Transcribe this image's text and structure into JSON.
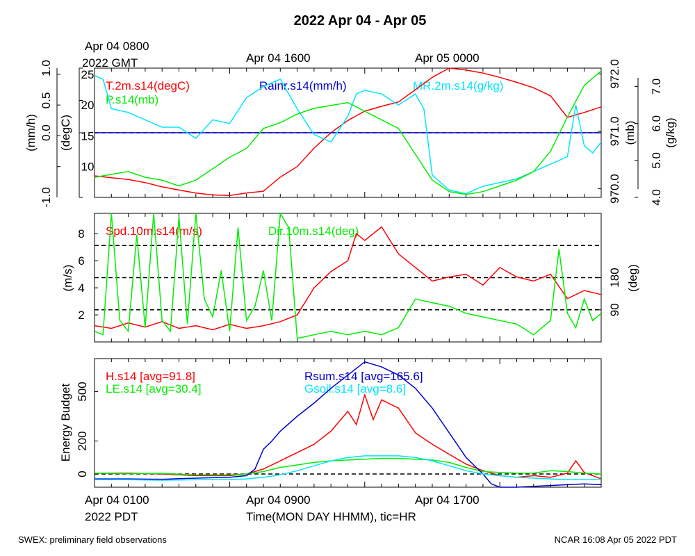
{
  "title": "2022 Apr 04 - Apr 05",
  "top_time_labels": [
    {
      "line1": "Apr 04 0800",
      "line2": "2022 GMT"
    },
    {
      "line1": "Apr 04 1600",
      "line2": ""
    },
    {
      "line1": "Apr 05 0000",
      "line2": ""
    }
  ],
  "bottom_time_labels": [
    {
      "line1": "Apr 04 0100",
      "line2": "2022 PDT"
    },
    {
      "line1": "Apr 04 0900",
      "line2": ""
    },
    {
      "line1": "Apr 04 1700",
      "line2": ""
    }
  ],
  "xlabel": "Time(MON DAY HHMM), tic=HR",
  "footer_left": "SWEX: preliminary field observations",
  "footer_right": "NCAR 16:08 Apr 05 2022 PDT",
  "colors": {
    "red": "#ff0000",
    "green": "#00ee00",
    "blue": "#0000cc",
    "cyan": "#00e5ff",
    "black": "#000000"
  },
  "chart_data": [
    {
      "type": "line",
      "panel": "top",
      "x_unit": "hours since Apr 04 0100 PDT",
      "xlim": [
        0,
        30
      ],
      "axes": {
        "rain": {
          "label": "(mm/h)",
          "range": [
            -1.0,
            1.0
          ],
          "ticks": [
            "-1.0",
            "0.0",
            "0.5",
            "1.0"
          ],
          "tick_values": [
            -1.0,
            0.0,
            0.5,
            1.0
          ]
        },
        "temp": {
          "label": "(degC)",
          "range": [
            5,
            26
          ],
          "ticks": [
            "10",
            "15",
            "20",
            "25"
          ],
          "tick_values": [
            10,
            15,
            20,
            25
          ]
        },
        "pres": {
          "label": "(mb)",
          "range": [
            969.85,
            972.1
          ],
          "ticks": [
            "970.0",
            "971.0",
            "972.0"
          ],
          "tick_values": [
            970.0,
            971.0,
            972.0
          ]
        },
        "mr": {
          "label": "(g/kg)",
          "range": [
            4.0,
            7.5
          ],
          "ticks": [
            "4.0",
            "5.0",
            "6.0",
            "7.0"
          ],
          "tick_values": [
            4.0,
            5.0,
            6.0,
            7.0
          ]
        }
      },
      "reference_lines": [
        {
          "axis": "rain",
          "value": 0.0
        }
      ],
      "series": [
        {
          "name": "T.2m.s14(degC)",
          "axis": "temp",
          "color": "red",
          "x": [
            0,
            1,
            2,
            3,
            4,
            5,
            6,
            7,
            8,
            9,
            10,
            11,
            12,
            13,
            14,
            15,
            16,
            17,
            18,
            19,
            20,
            21,
            22,
            23,
            24,
            25,
            26,
            27,
            28,
            29,
            30
          ],
          "y": [
            8.5,
            8.2,
            7.9,
            7.4,
            6.7,
            6.2,
            5.7,
            5.4,
            5.3,
            5.7,
            6.0,
            8.3,
            10.0,
            13.0,
            15.5,
            17.5,
            19.0,
            19.8,
            20.5,
            22.5,
            24.5,
            26.0,
            25.7,
            25.2,
            24.5,
            23.7,
            22.8,
            21.5,
            18.0,
            18.8,
            19.7
          ]
        },
        {
          "name": "Rainr.s14(mm/h)",
          "axis": "rain",
          "color": "blue",
          "x": [
            0,
            30
          ],
          "y": [
            0.0,
            0.0
          ]
        },
        {
          "name": "MR.2m.s14(g/kg)",
          "axis": "mr",
          "color": "cyan",
          "x": [
            0,
            0.5,
            1,
            2,
            3,
            4,
            5,
            6,
            7,
            8,
            9,
            10,
            11,
            12,
            13,
            14,
            15,
            15.5,
            16,
            17,
            18,
            19,
            19.5,
            20,
            21,
            22,
            23,
            24,
            25,
            26,
            27,
            28,
            28.5,
            29,
            29.5,
            30
          ],
          "y": [
            7.3,
            7.2,
            6.4,
            6.3,
            6.1,
            5.9,
            5.9,
            5.6,
            6.1,
            6.0,
            6.7,
            7.0,
            7.2,
            6.4,
            5.7,
            5.5,
            6.2,
            6.8,
            6.9,
            6.8,
            6.5,
            6.8,
            6.4,
            4.6,
            4.2,
            4.1,
            4.3,
            4.4,
            4.5,
            4.7,
            4.9,
            5.1,
            6.5,
            5.4,
            5.2,
            5.5
          ]
        },
        {
          "name": "P.s14(mb)",
          "axis": "pres",
          "color": "green",
          "x": [
            0,
            1,
            2,
            3,
            4,
            5,
            6,
            7,
            8,
            9,
            10,
            11,
            12,
            13,
            14,
            15,
            16,
            17,
            18,
            19,
            20,
            21,
            22,
            23,
            24,
            25,
            26,
            27,
            28,
            29,
            30
          ],
          "y": [
            970.2,
            970.25,
            970.3,
            970.2,
            970.15,
            970.05,
            970.15,
            970.35,
            970.55,
            970.7,
            971.05,
            971.15,
            971.3,
            971.4,
            971.45,
            971.5,
            971.35,
            971.2,
            971.05,
            970.6,
            970.15,
            969.95,
            969.9,
            969.95,
            970.05,
            970.15,
            970.3,
            970.65,
            971.25,
            971.8,
            972.05
          ]
        }
      ]
    },
    {
      "type": "line",
      "panel": "middle",
      "x_unit": "hours since Apr 04 0100 PDT",
      "xlim": [
        0,
        30
      ],
      "axes": {
        "spd": {
          "label": "(m/s)",
          "range": [
            0,
            9.5
          ],
          "ticks": [
            "2",
            "4",
            "6",
            "8"
          ],
          "tick_values": [
            2,
            4,
            6,
            8
          ]
        },
        "dir": {
          "label": "(deg)",
          "range": [
            0,
            360
          ],
          "ticks": [
            "90",
            "180"
          ],
          "tick_values": [
            90,
            180
          ]
        }
      },
      "reference_lines": [
        {
          "axis": "dir",
          "value": 90
        },
        {
          "axis": "dir",
          "value": 180
        },
        {
          "axis": "dir",
          "value": 270
        }
      ],
      "series": [
        {
          "name": "Spd.10m.s14(m/s)",
          "axis": "spd",
          "color": "red",
          "x": [
            0,
            1,
            2,
            3,
            4,
            5,
            6,
            7,
            8,
            9,
            10,
            11,
            12,
            13,
            14,
            15,
            15.5,
            16,
            17,
            18,
            19,
            20,
            21,
            22,
            23,
            24,
            25,
            26,
            27,
            28,
            29,
            30
          ],
          "y": [
            1.2,
            1.0,
            1.4,
            1.1,
            1.5,
            1.0,
            1.2,
            0.9,
            1.3,
            1.0,
            1.2,
            1.5,
            2.0,
            4.0,
            5.2,
            6.0,
            8.0,
            7.5,
            8.5,
            6.5,
            5.5,
            4.5,
            4.8,
            5.0,
            4.2,
            5.5,
            4.8,
            4.5,
            5.0,
            3.2,
            3.8,
            3.5
          ]
        },
        {
          "name": "Dir.10m.s14(deg)",
          "axis": "dir",
          "color": "green",
          "x": [
            0,
            0.5,
            1,
            1.5,
            2,
            2.5,
            3,
            3.5,
            4,
            4.5,
            5,
            5.5,
            6,
            6.5,
            7,
            7.5,
            8,
            8.5,
            9,
            9.5,
            10,
            10.5,
            11,
            11.5,
            12,
            13,
            14,
            15,
            16,
            17,
            18,
            19,
            20,
            21,
            22,
            23,
            24,
            25,
            26,
            27,
            27.5,
            28,
            28.5,
            29,
            29.5,
            30
          ],
          "y": [
            30,
            20,
            360,
            60,
            30,
            300,
            40,
            360,
            60,
            30,
            350,
            50,
            360,
            120,
            70,
            200,
            30,
            320,
            60,
            100,
            200,
            60,
            360,
            320,
            10,
            20,
            30,
            20,
            30,
            20,
            40,
            120,
            110,
            100,
            80,
            70,
            60,
            50,
            20,
            60,
            260,
            80,
            40,
            120,
            60,
            80
          ]
        }
      ]
    },
    {
      "type": "line",
      "panel": "bottom",
      "x_unit": "hours since Apr 04 0100 PDT",
      "xlim": [
        0,
        30
      ],
      "ylabel": "Energy Budget",
      "ylim": [
        -80,
        700
      ],
      "yticks": [
        "0",
        "200",
        "500"
      ],
      "ytick_values": [
        0,
        200,
        500
      ],
      "reference_lines": [
        {
          "value": 0
        }
      ],
      "series": [
        {
          "name": "H.s14",
          "avg_label": "[avg=91.8]",
          "color": "red",
          "x": [
            0,
            2,
            4,
            6,
            8,
            9,
            10,
            11,
            12,
            13,
            14,
            15,
            15.5,
            16,
            16.5,
            17,
            18,
            19,
            20,
            21,
            22,
            23,
            24,
            25,
            26,
            27,
            28,
            28.5,
            29,
            30
          ],
          "y": [
            5,
            5,
            0,
            -10,
            -10,
            0,
            30,
            80,
            130,
            180,
            260,
            380,
            300,
            480,
            330,
            450,
            400,
            250,
            180,
            120,
            60,
            20,
            -10,
            -20,
            -10,
            -20,
            5,
            80,
            10,
            -30
          ]
        },
        {
          "name": "LE.s14",
          "avg_label": "[avg=30.4]",
          "color": "green",
          "x": [
            0,
            2,
            4,
            6,
            8,
            9,
            10,
            11,
            12,
            13,
            14,
            15,
            16,
            17,
            18,
            19,
            20,
            21,
            22,
            23,
            24,
            25,
            26,
            27,
            28,
            29,
            30
          ],
          "y": [
            5,
            2,
            3,
            -5,
            -5,
            0,
            15,
            40,
            55,
            70,
            80,
            85,
            90,
            95,
            95,
            90,
            85,
            70,
            40,
            15,
            10,
            5,
            5,
            20,
            15,
            5,
            0
          ]
        },
        {
          "name": "Rsum.s14",
          "avg_label": "[avg=165.6]",
          "color": "blue",
          "x": [
            0,
            2,
            4,
            6,
            8,
            9,
            9.5,
            10,
            10.5,
            11,
            12,
            13,
            14,
            15,
            16,
            17,
            18,
            19,
            20,
            21,
            22,
            23,
            23.5,
            24,
            25,
            26,
            27,
            28,
            29,
            30
          ],
          "y": [
            -30,
            -30,
            -32,
            -25,
            -20,
            -10,
            30,
            150,
            200,
            260,
            350,
            430,
            520,
            600,
            680,
            650,
            600,
            520,
            400,
            250,
            100,
            0,
            -60,
            -80,
            -80,
            -75,
            -70,
            -65,
            -60,
            -65
          ]
        },
        {
          "name": "Gsoil.s14",
          "avg_label": "[avg=8.6]",
          "color": "cyan",
          "x": [
            0,
            2,
            4,
            6,
            8,
            9,
            10,
            11,
            12,
            13,
            14,
            15,
            16,
            17,
            18,
            19,
            20,
            21,
            22,
            23,
            24,
            25,
            26,
            27,
            28,
            29,
            30
          ],
          "y": [
            -35,
            -35,
            -38,
            -35,
            -33,
            -30,
            -20,
            -5,
            20,
            50,
            80,
            100,
            110,
            110,
            110,
            100,
            80,
            50,
            20,
            0,
            -10,
            -20,
            -25,
            -30,
            -35,
            -35,
            -35
          ]
        }
      ]
    }
  ]
}
